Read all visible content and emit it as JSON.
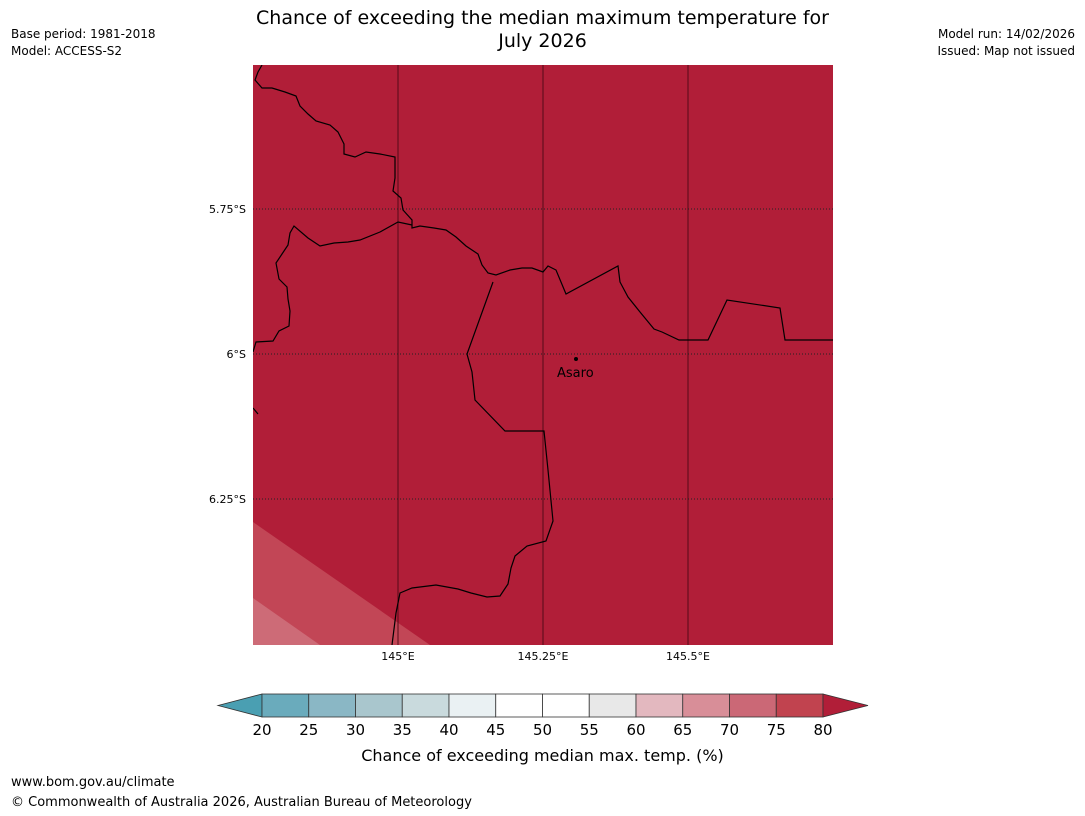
{
  "header": {
    "title_line1": "Chance of exceeding the median maximum temperature for",
    "title_line2": "July 2026",
    "base_period": "Base period: 1981-2018",
    "model": "Model: ACCESS-S2",
    "model_run": "Model run: 14/02/2026",
    "issued": "Issued: Map not issued"
  },
  "map": {
    "latitude_labels": [
      "5.75°S",
      "6°S",
      "6.25°S"
    ],
    "longitude_labels": [
      "145°E",
      "145.25°E",
      "145.5°E"
    ],
    "place": {
      "name": "Asaro",
      "marker_icon": "town-dot-icon"
    },
    "region_colors": {
      "above_80": "#b11e38",
      "75_80": "#c24656",
      "70_75": "#cd6b77"
    }
  },
  "colorbar": {
    "ticks": [
      "20",
      "25",
      "30",
      "35",
      "40",
      "45",
      "50",
      "55",
      "60",
      "65",
      "70",
      "75",
      "80"
    ],
    "below_color": "#4a9fb2",
    "above_color": "#b11e38",
    "bin_colors": [
      "#6aabbc",
      "#8ab7c5",
      "#a9c6cd",
      "#c9dadd",
      "#eaf1f3",
      "#ffffff",
      "#ffffff",
      "#e8e8e8",
      "#e3b8bf",
      "#d88e98",
      "#cb6876",
      "#c1434f"
    ],
    "label": "Chance of exceeding median max. temp. (%)"
  },
  "footer": {
    "url": "www.bom.gov.au/climate",
    "copyright": "© Commonwealth of Australia 2026, Australian Bureau of Meteorology"
  }
}
